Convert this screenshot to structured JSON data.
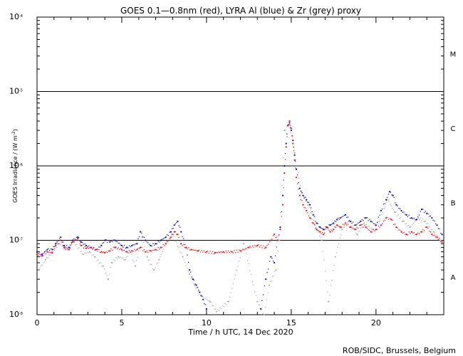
{
  "chart_data": {
    "type": "scatter",
    "title": "GOES 0.1—0.8nm (red), LYRA Al (blue) & Zr (grey) proxy",
    "xlabel": "Time / h UTC, 14 Dec 2020",
    "ylabel": "GOES Irradiance / (W m",
    "ylabel_exp": "-2",
    "ylabel_close": ")",
    "credit": "ROB/SIDC, Brussels, Belgium",
    "xlim": [
      0,
      24
    ],
    "ylim": [
      1e-08,
      0.0001
    ],
    "yscale": "log",
    "x_ticks": [
      {
        "value": 0,
        "label": "0"
      },
      {
        "value": 5,
        "label": "5"
      },
      {
        "value": 10,
        "label": "10"
      },
      {
        "value": 15,
        "label": "15"
      },
      {
        "value": 20,
        "label": "20"
      }
    ],
    "y_ticks": [
      {
        "value": 1e-08,
        "base": "10",
        "exp": "-8"
      },
      {
        "value": 1e-07,
        "base": "10",
        "exp": "-7"
      },
      {
        "value": 1e-06,
        "base": "10",
        "exp": "-6"
      },
      {
        "value": 1e-05,
        "base": "10",
        "exp": "-5"
      },
      {
        "value": 0.0001,
        "base": "10",
        "exp": "-4"
      }
    ],
    "flare_thresholds": [
      1e-07,
      1e-06,
      1e-05
    ],
    "flare_classes": [
      {
        "label": "A",
        "value": 3.2e-08
      },
      {
        "label": "B",
        "value": 3.2e-07
      },
      {
        "label": "C",
        "value": 3.2e-06
      },
      {
        "label": "M",
        "value": 3.2e-05
      }
    ],
    "grid": false,
    "series": [
      {
        "name": "GOES 0.1—0.8nm",
        "color": "#ff0000",
        "x": [
          0.0,
          0.3,
          0.6,
          0.9,
          1.1,
          1.4,
          1.6,
          1.9,
          2.1,
          2.4,
          2.6,
          2.9,
          3.2,
          3.5,
          3.8,
          4.0,
          4.3,
          4.6,
          5.0,
          5.3,
          5.6,
          5.9,
          6.1,
          6.4,
          6.7,
          7.0,
          7.3,
          7.6,
          7.9,
          8.1,
          8.3,
          8.5,
          8.8,
          9.1,
          9.5,
          10.0,
          10.5,
          11.0,
          11.5,
          12.0,
          12.5,
          13.0,
          13.5,
          13.8,
          14.0,
          14.2,
          14.35,
          14.5,
          14.6,
          14.7,
          14.8,
          14.9,
          15.0,
          15.1,
          15.2,
          15.3,
          15.5,
          15.7,
          15.9,
          16.1,
          16.3,
          16.5,
          16.7,
          16.9,
          17.1,
          17.3,
          17.5,
          17.7,
          17.9,
          18.2,
          18.5,
          18.8,
          19.1,
          19.4,
          19.7,
          20.0,
          20.3,
          20.6,
          20.9,
          21.2,
          21.5,
          21.8,
          22.1,
          22.4,
          22.7,
          23.0,
          23.3,
          23.6,
          23.9
        ],
        "y": [
          6.5e-08,
          6.2e-08,
          7e-08,
          6.8e-08,
          8.5e-08,
          1e-07,
          8e-08,
          7.5e-08,
          9.5e-08,
          1.05e-07,
          8.5e-08,
          7.8e-08,
          8e-08,
          7.5e-08,
          7e-08,
          6.8e-08,
          7.2e-08,
          8e-08,
          7.5e-08,
          7e-08,
          7.2e-08,
          7.5e-08,
          8e-08,
          7e-08,
          7.2e-08,
          7.5e-08,
          8e-08,
          9e-08,
          1.1e-07,
          1.3e-07,
          1.2e-07,
          9e-08,
          8e-08,
          7.5e-08,
          7.2e-08,
          7e-08,
          6.8e-08,
          7e-08,
          7e-08,
          7.2e-08,
          8e-08,
          8.5e-08,
          8e-08,
          1e-07,
          1.2e-07,
          1e-07,
          1.4e-07,
          3e-07,
          8e-07,
          1.8e-06,
          3.5e-06,
          4e-06,
          3.2e-06,
          2e-06,
          1.2e-06,
          7e-07,
          4e-07,
          3e-07,
          2.5e-07,
          2e-07,
          1.7e-07,
          1.4e-07,
          1.3e-07,
          1.2e-07,
          1.5e-07,
          1.3e-07,
          1.4e-07,
          1.6e-07,
          1.5e-07,
          1.7e-07,
          1.5e-07,
          1.4e-07,
          1.6e-07,
          1.5e-07,
          1.3e-07,
          1.4e-07,
          1.6e-07,
          2e-07,
          1.9e-07,
          1.5e-07,
          1.3e-07,
          1.2e-07,
          1.3e-07,
          1.2e-07,
          1.3e-07,
          1.5e-07,
          1.2e-07,
          1.1e-07,
          9.5e-08
        ]
      },
      {
        "name": "LYRA Al",
        "color": "#0000cc",
        "x": [
          0.0,
          0.3,
          0.6,
          0.9,
          1.1,
          1.4,
          1.6,
          1.9,
          2.1,
          2.4,
          2.6,
          2.9,
          3.2,
          3.5,
          3.8,
          4.0,
          4.3,
          4.6,
          5.0,
          5.3,
          5.6,
          5.9,
          6.1,
          6.4,
          6.7,
          7.0,
          7.3,
          7.6,
          7.9,
          8.1,
          8.3,
          8.5,
          8.8,
          9.0,
          9.2,
          9.4,
          9.6,
          9.8,
          10.0,
          13.2,
          13.5,
          13.8,
          14.0,
          14.2,
          14.35,
          14.5,
          14.6,
          14.7,
          14.8,
          14.9,
          15.0,
          15.1,
          15.2,
          15.3,
          15.5,
          15.7,
          15.9,
          16.1,
          16.3,
          16.5,
          16.7,
          16.9,
          17.1,
          17.3,
          17.5,
          17.7,
          17.9,
          18.2,
          18.5,
          18.8,
          19.1,
          19.4,
          19.7,
          20.0,
          20.3,
          20.6,
          20.8,
          21.0,
          21.2,
          21.5,
          21.8,
          22.1,
          22.4,
          22.7,
          23.0,
          23.3,
          23.6,
          23.9
        ],
        "y": [
          7e-08,
          6.5e-08,
          7.5e-08,
          7.5e-08,
          9e-08,
          1.1e-07,
          8.5e-08,
          8e-08,
          1e-07,
          1.1e-07,
          9.5e-08,
          8.5e-08,
          8e-08,
          7.5e-08,
          8.5e-08,
          1e-07,
          9.5e-08,
          1e-07,
          8.5e-08,
          8e-08,
          8.5e-08,
          9e-08,
          1.3e-07,
          1e-07,
          8.5e-08,
          9e-08,
          1e-07,
          1.1e-07,
          1.3e-07,
          1.6e-07,
          1.8e-07,
          1.3e-07,
          8e-08,
          4e-08,
          3e-08,
          2.5e-08,
          2e-08,
          1.6e-08,
          1.2e-08,
          1.2e-08,
          3e-08,
          6e-08,
          5e-08,
          1e-07,
          1.5e-07,
          4e-07,
          1e-06,
          2e-06,
          3.5e-06,
          3.8e-06,
          3e-06,
          2.2e-06,
          1.4e-06,
          9e-07,
          5e-07,
          4e-07,
          3.5e-07,
          3e-07,
          2.2e-07,
          1.7e-07,
          1.5e-07,
          1.4e-07,
          1.5e-07,
          1.6e-07,
          1.7e-07,
          1.9e-07,
          2e-07,
          2.2e-07,
          1.8e-07,
          1.6e-07,
          1.8e-07,
          2e-07,
          1.8e-07,
          1.6e-07,
          2.5e-07,
          3.5e-07,
          4.5e-07,
          4e-07,
          3e-07,
          2.5e-07,
          2.2e-07,
          2e-07,
          1.9e-07,
          2.6e-07,
          2.3e-07,
          2e-07,
          1.6e-07,
          1.2e-07
        ]
      },
      {
        "name": "Zr",
        "color": "#aaaaaa",
        "x": [
          0.1,
          0.5,
          0.9,
          1.3,
          1.7,
          2.2,
          2.7,
          3.1,
          3.4,
          3.9,
          4.2,
          4.4,
          4.8,
          5.2,
          5.5,
          5.8,
          6.2,
          6.5,
          6.9,
          7.2,
          7.6,
          8.0,
          8.6,
          9.0,
          9.3,
          9.7,
          10.2,
          10.6,
          11.3,
          12.2,
          13.0,
          13.4,
          13.7,
          14.1,
          14.3,
          14.6,
          14.9,
          15.2,
          15.6,
          16.0,
          16.4,
          16.8,
          17.2,
          17.6,
          18.0,
          18.4,
          18.9,
          19.3,
          19.8,
          20.2,
          20.7,
          21.1,
          21.6,
          22.0,
          22.5,
          22.9,
          23.4,
          23.8
        ],
        "y": [
          4e-08,
          5.5e-08,
          7e-08,
          9e-08,
          7.5e-08,
          9.5e-08,
          6.5e-08,
          7e-08,
          6e-08,
          4.5e-08,
          3e-08,
          5e-08,
          6e-08,
          5.5e-08,
          7e-08,
          4.5e-08,
          1.1e-07,
          6e-08,
          4e-08,
          5.5e-08,
          9e-08,
          1.2e-07,
          6e-08,
          3.5e-08,
          2.5e-08,
          1.8e-08,
          1.5e-08,
          1.1e-08,
          1.5e-08,
          9e-08,
          1.5e-08,
          1e-08,
          2.5e-08,
          4e-08,
          1e-07,
          3e-06,
          3.6e-06,
          1.5e-06,
          4.5e-07,
          3e-07,
          1.6e-07,
          1e-07,
          1.5e-08,
          6e-08,
          1.4e-07,
          1.8e-07,
          1.2e-07,
          1.7e-07,
          1.4e-07,
          1.8e-07,
          3.5e-07,
          2.4e-07,
          1.8e-07,
          1.5e-07,
          2e-07,
          1.8e-07,
          1.3e-07,
          1e-07
        ]
      }
    ]
  }
}
